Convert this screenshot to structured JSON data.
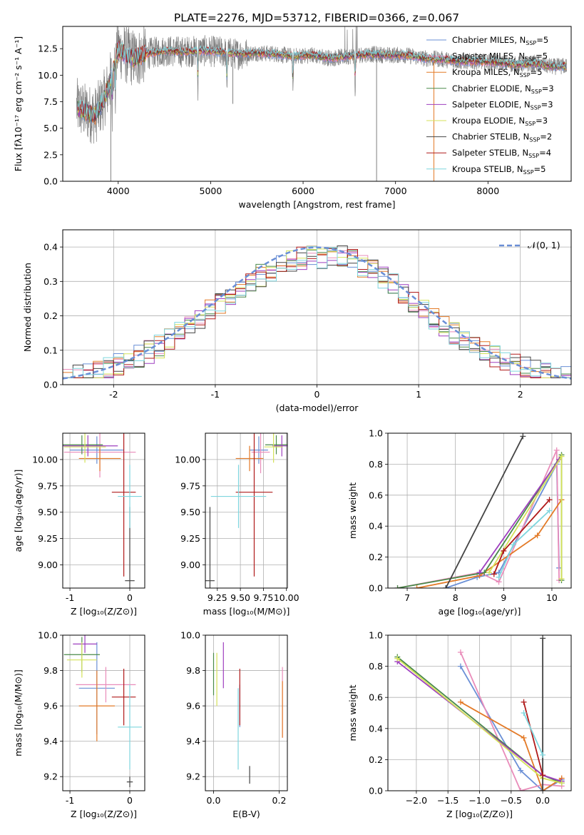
{
  "figure_title": "PLATE=2276, MJD=53712, FIBERID=0366, z=0.067",
  "colors": {
    "c0": "#6a8fd6",
    "c1": "#e98cba",
    "c2": "#e37a27",
    "c3": "#4a8a4a",
    "c4": "#9e3fbf",
    "c5": "#d4e25a",
    "c6": "#444444",
    "c7": "#b01a1a",
    "c8": "#7fd6de",
    "data": "#808080"
  },
  "chart_data": [
    {
      "id": "spectrum",
      "type": "line",
      "title": "PLATE=2276, MJD=53712, FIBERID=0366, z=0.067",
      "xlabel": "wavelength [Angstrom, rest frame]",
      "ylabel": "Flux [fλ10⁻¹⁷ erg cm⁻² s⁻¹ A⁻¹]",
      "xlim": [
        3400,
        8900
      ],
      "ylim": [
        0,
        14.6
      ],
      "xticks": [
        4000,
        5000,
        6000,
        7000,
        8000
      ],
      "yticks": [
        0.0,
        2.5,
        5.0,
        7.5,
        10.0,
        12.5
      ],
      "ytick_labels": [
        "0.0",
        "2.5",
        "5.0",
        "7.5",
        "10.0",
        "12.5"
      ],
      "legend_placement": "right",
      "continuum": [
        [
          3550,
          7.0
        ],
        [
          3650,
          6.5
        ],
        [
          3750,
          6.2
        ],
        [
          3850,
          7.8
        ],
        [
          3900,
          9.0
        ],
        [
          4000,
          12.5
        ],
        [
          4100,
          11.8
        ],
        [
          4200,
          11.6
        ],
        [
          4300,
          12.0
        ],
        [
          4500,
          12.3
        ],
        [
          4700,
          12.2
        ],
        [
          4900,
          12.3
        ],
        [
          5100,
          12.2
        ],
        [
          5300,
          12.0
        ],
        [
          5500,
          12.1
        ],
        [
          5700,
          12.0
        ],
        [
          5900,
          11.8
        ],
        [
          6100,
          11.9
        ],
        [
          6300,
          11.6
        ],
        [
          6500,
          11.8
        ],
        [
          6700,
          12.0
        ],
        [
          6900,
          11.9
        ],
        [
          7100,
          11.9
        ],
        [
          7300,
          11.6
        ],
        [
          7500,
          11.5
        ],
        [
          7700,
          11.3
        ],
        [
          7900,
          11.3
        ],
        [
          8100,
          11.2
        ],
        [
          8300,
          11.0
        ],
        [
          8500,
          11.1
        ],
        [
          8700,
          10.8
        ],
        [
          8900,
          10.9
        ]
      ],
      "series": [
        {
          "name": "Chabrier MILES, N_SSP=5",
          "label": "Chabrier MILES, N",
          "sub": "SSP",
          "count": "=5",
          "color": "#6a8fd6"
        },
        {
          "name": "Salpeter MILES, N_SSP=5",
          "label": "Salpeter MILES, N",
          "sub": "SSP",
          "count": "=5",
          "color": "#e98cba"
        },
        {
          "name": "Kroupa MILES, N_SSP=5",
          "label": "Kroupa MILES, N",
          "sub": "SSP",
          "count": "=5",
          "color": "#e37a27"
        },
        {
          "name": "Chabrier ELODIE, N_SSP=3",
          "label": "Chabrier ELODIE, N",
          "sub": "SSP",
          "count": "=3",
          "color": "#4a8a4a"
        },
        {
          "name": "Salpeter ELODIE, N_SSP=3",
          "label": "Salpeter ELODIE, N",
          "sub": "SSP",
          "count": "=3",
          "color": "#9e3fbf"
        },
        {
          "name": "Kroupa ELODIE, N_SSP=3",
          "label": "Kroupa ELODIE, N",
          "sub": "SSP",
          "count": "=3",
          "color": "#d4e25a"
        },
        {
          "name": "Chabrier STELIB, N_SSP=2",
          "label": "Chabrier STELIB, N",
          "sub": "SSP",
          "count": "=2",
          "color": "#444444"
        },
        {
          "name": "Salpeter STELIB, N_SSP=4",
          "label": "Salpeter STELIB, N",
          "sub": "SSP",
          "count": "=4",
          "color": "#b01a1a"
        },
        {
          "name": "Kroupa STELIB, N_SSP=5",
          "label": "Kroupa STELIB, N",
          "sub": "SSP",
          "count": "=5",
          "color": "#7fd6de"
        }
      ]
    },
    {
      "id": "residuals",
      "type": "line",
      "xlabel": "(data-model)/error",
      "ylabel": "Normed distribution",
      "xlim": [
        -2.5,
        2.5
      ],
      "ylim": [
        0,
        0.45
      ],
      "xticks": [
        -2,
        -1,
        0,
        1,
        2
      ],
      "yticks": [
        0.0,
        0.1,
        0.2,
        0.3,
        0.4
      ],
      "ytick_labels": [
        "0.0",
        "0.1",
        "0.2",
        "0.3",
        "0.4"
      ],
      "grid": true,
      "gaussian_label": "𝒩(0, 1)",
      "legend_placement": "top-right"
    },
    {
      "id": "age-vs-z",
      "type": "scatter",
      "xlabel": "Z [log₁₀(Z/Z⊙)]",
      "ylabel": "age  [log₁₀(age/yr)]",
      "xlim": [
        -1.12,
        0.25
      ],
      "ylim": [
        8.78,
        10.25
      ],
      "xticks": [
        -1,
        0
      ],
      "yticks": [
        9.0,
        9.25,
        9.5,
        9.75,
        10.0
      ],
      "ytick_labels": [
        "9.00",
        "9.25",
        "9.50",
        "9.75",
        "10.00"
      ],
      "grid": true,
      "points": [
        {
          "color": "#6a8fd6",
          "x": -0.55,
          "xerr": 0.45,
          "y": 10.09,
          "yerr": 0.13
        },
        {
          "color": "#e98cba",
          "x": -0.5,
          "xerr": 0.6,
          "y": 10.07,
          "yerr": 0.24
        },
        {
          "color": "#e37a27",
          "x": -0.5,
          "xerr": 0.35,
          "y": 10.01,
          "yerr": 0.12
        },
        {
          "color": "#4a8a4a",
          "x": -0.8,
          "xerr": 0.35,
          "y": 10.14,
          "yerr": 0.09
        },
        {
          "color": "#9e3fbf",
          "x": -0.7,
          "xerr": 0.5,
          "y": 10.13,
          "yerr": 0.1
        },
        {
          "color": "#d4e25a",
          "x": -0.75,
          "xerr": 0.35,
          "y": 10.12,
          "yerr": 0.15
        },
        {
          "color": "#444444",
          "x": 0.0,
          "xerr": 0.08,
          "y": 8.85,
          "yerr": 0.7
        },
        {
          "color": "#b01a1a",
          "x": -0.1,
          "xerr": 0.2,
          "y": 9.69,
          "yerr": 0.8
        },
        {
          "color": "#7fd6de",
          "x": 0.0,
          "xerr": 0.2,
          "y": 9.65,
          "yerr": 0.3
        }
      ]
    },
    {
      "id": "age-vs-mass",
      "type": "scatter",
      "xlabel": "mass [log₁₀(M/M⊙)]",
      "ylabel": "",
      "xlim": [
        9.12,
        10.01
      ],
      "ylim": [
        8.78,
        10.25
      ],
      "xticks": [
        9.25,
        9.5,
        9.75,
        10.0
      ],
      "xtick_labels": [
        "9.25",
        "9.50",
        "9.75",
        "10.00"
      ],
      "yticks": [
        9.0,
        9.25,
        9.5,
        9.75,
        10.0
      ],
      "ytick_labels": [
        "9.00",
        "9.25",
        "9.50",
        "9.75",
        "10.00"
      ],
      "grid": true,
      "points": [
        {
          "color": "#6a8fd6",
          "x": 9.7,
          "xerr": 0.1,
          "y": 10.09,
          "yerr": 0.13
        },
        {
          "color": "#e98cba",
          "x": 9.72,
          "xerr": 0.1,
          "y": 10.07,
          "yerr": 0.2
        },
        {
          "color": "#e37a27",
          "x": 9.6,
          "xerr": 0.15,
          "y": 10.01,
          "yerr": 0.12
        },
        {
          "color": "#4a8a4a",
          "x": 9.89,
          "xerr": 0.12,
          "y": 10.14,
          "yerr": 0.09
        },
        {
          "color": "#9e3fbf",
          "x": 9.95,
          "xerr": 0.1,
          "y": 10.13,
          "yerr": 0.1
        },
        {
          "color": "#d4e25a",
          "x": 9.86,
          "xerr": 0.1,
          "y": 10.12,
          "yerr": 0.15
        },
        {
          "color": "#444444",
          "x": 9.17,
          "xerr": 0.05,
          "y": 8.85,
          "yerr": 0.7
        },
        {
          "color": "#b01a1a",
          "x": 9.65,
          "xerr": 0.2,
          "y": 9.69,
          "yerr": 0.8
        },
        {
          "color": "#7fd6de",
          "x": 9.48,
          "xerr": 0.3,
          "y": 9.65,
          "yerr": 0.3
        }
      ]
    },
    {
      "id": "mass-weight-vs-age",
      "type": "line",
      "xlabel": "age  [log₁₀(age/yr)]",
      "ylabel": "mass weight",
      "xlim": [
        6.6,
        10.4
      ],
      "ylim": [
        0,
        1
      ],
      "xticks": [
        7,
        8,
        9,
        10
      ],
      "yticks": [
        0.0,
        0.2,
        0.4,
        0.6,
        0.8,
        1.0
      ],
      "ytick_labels": [
        "0.0",
        "0.2",
        "0.4",
        "0.6",
        "0.8",
        "1.0"
      ],
      "grid": true,
      "series": [
        {
          "color": "#6a8fd6",
          "points": [
            [
              7.8,
              0.0
            ],
            [
              8.45,
              0.07
            ],
            [
              8.9,
              0.1
            ],
            [
              10.1,
              0.8
            ],
            [
              10.15,
              0.13
            ]
          ]
        },
        {
          "color": "#e98cba",
          "points": [
            [
              6.8,
              0.0
            ],
            [
              8.5,
              0.1
            ],
            [
              8.9,
              0.04
            ],
            [
              10.1,
              0.89
            ],
            [
              10.15,
              0.05
            ]
          ]
        },
        {
          "color": "#e37a27",
          "points": [
            [
              7.2,
              0.0
            ],
            [
              8.5,
              0.08
            ],
            [
              9.7,
              0.34
            ],
            [
              10.2,
              0.57
            ]
          ]
        },
        {
          "color": "#4a8a4a",
          "points": [
            [
              6.8,
              0.0
            ],
            [
              8.6,
              0.1
            ],
            [
              10.2,
              0.86
            ],
            [
              10.2,
              0.05
            ]
          ]
        },
        {
          "color": "#9e3fbf",
          "points": [
            [
              8.5,
              0.1
            ],
            [
              10.15,
              0.83
            ]
          ]
        },
        {
          "color": "#d4e25a",
          "points": [
            [
              8.7,
              0.1
            ],
            [
              10.2,
              0.85
            ],
            [
              10.2,
              0.06
            ]
          ]
        },
        {
          "color": "#444444",
          "points": [
            [
              7.8,
              0.0
            ],
            [
              9.4,
              0.98
            ]
          ]
        },
        {
          "color": "#b01a1a",
          "points": [
            [
              8.8,
              0.09
            ],
            [
              9.0,
              0.24
            ],
            [
              9.95,
              0.57
            ]
          ]
        },
        {
          "color": "#7fd6de",
          "points": [
            [
              8.9,
              0.07
            ],
            [
              9.2,
              0.28
            ],
            [
              9.95,
              0.5
            ]
          ]
        }
      ]
    },
    {
      "id": "mass-vs-z",
      "type": "scatter",
      "xlabel": "Z [log₁₀(Z/Z⊙)]",
      "ylabel": "mass [log₁₀(M/M⊙)]",
      "xlim": [
        -1.12,
        0.25
      ],
      "ylim": [
        9.12,
        10.0
      ],
      "xticks": [
        -1,
        0
      ],
      "yticks": [
        9.2,
        9.4,
        9.6,
        9.8,
        10.0
      ],
      "ytick_labels": [
        "9.2",
        "9.4",
        "9.6",
        "9.8",
        "10.0"
      ],
      "grid": true,
      "points": [
        {
          "color": "#6a8fd6",
          "x": -0.55,
          "xerr": 0.3,
          "y": 9.7,
          "yerr": 0.26
        },
        {
          "color": "#e98cba",
          "x": -0.4,
          "xerr": 0.5,
          "y": 9.72,
          "yerr": 0.1
        },
        {
          "color": "#e37a27",
          "x": -0.55,
          "xerr": 0.3,
          "y": 9.6,
          "yerr": 0.2
        },
        {
          "color": "#4a8a4a",
          "x": -0.8,
          "xerr": 0.3,
          "y": 9.89,
          "yerr": 0.1
        },
        {
          "color": "#9e3fbf",
          "x": -0.75,
          "xerr": 0.2,
          "y": 9.95,
          "yerr": 0.05
        },
        {
          "color": "#d4e25a",
          "x": -0.8,
          "xerr": 0.25,
          "y": 9.86,
          "yerr": 0.1
        },
        {
          "color": "#444444",
          "x": 0.0,
          "xerr": 0.05,
          "y": 9.17,
          "yerr": 0.03
        },
        {
          "color": "#b01a1a",
          "x": -0.1,
          "xerr": 0.2,
          "y": 9.65,
          "yerr": 0.16
        },
        {
          "color": "#7fd6de",
          "x": 0.0,
          "xerr": 0.2,
          "y": 9.48,
          "yerr": 0.24
        }
      ]
    },
    {
      "id": "mass-vs-ebv",
      "type": "scatter",
      "xlabel": "E(B-V)",
      "ylabel": "",
      "xlim": [
        -0.025,
        0.225
      ],
      "ylim": [
        9.12,
        10.0
      ],
      "xticks": [
        0.0,
        0.2
      ],
      "xtick_labels": [
        "0.0",
        "0.2"
      ],
      "yticks": [
        9.2,
        9.4,
        9.6,
        9.8,
        10.0
      ],
      "ytick_labels": [
        "9.2",
        "9.4",
        "9.6",
        "9.8",
        "10.0"
      ],
      "grid": true,
      "points": [
        {
          "color": "#6a8fd6",
          "x": 0.08,
          "y": 9.6,
          "yerr": 0.12
        },
        {
          "color": "#e98cba",
          "x": 0.21,
          "y": 9.62,
          "yerr": 0.2
        },
        {
          "color": "#e37a27",
          "x": 0.21,
          "y": 9.58,
          "yerr": 0.16
        },
        {
          "color": "#4a8a4a",
          "x": 0.0,
          "y": 9.78,
          "yerr": 0.12
        },
        {
          "color": "#9e3fbf",
          "x": 0.03,
          "y": 9.83,
          "yerr": 0.13
        },
        {
          "color": "#d4e25a",
          "x": 0.01,
          "y": 9.75,
          "yerr": 0.15
        },
        {
          "color": "#444444",
          "x": 0.11,
          "y": 9.21,
          "yerr": 0.05
        },
        {
          "color": "#b01a1a",
          "x": 0.08,
          "y": 9.65,
          "yerr": 0.16
        },
        {
          "color": "#7fd6de",
          "x": 0.075,
          "y": 9.47,
          "yerr": 0.23
        }
      ]
    },
    {
      "id": "mass-weight-vs-z",
      "type": "line",
      "xlabel": "Z [log₁₀(Z/Z⊙)]",
      "ylabel": "mass weight",
      "xlim": [
        -2.45,
        0.45
      ],
      "ylim": [
        0,
        1
      ],
      "xticks": [
        -2.0,
        -1.5,
        -1.0,
        -0.5,
        0.0
      ],
      "xtick_labels": [
        "−2.0",
        "−1.5",
        "−1.0",
        "−0.5",
        "0.0"
      ],
      "yticks": [
        0.0,
        0.2,
        0.4,
        0.6,
        0.8,
        1.0
      ],
      "ytick_labels": [
        "0.0",
        "0.2",
        "0.4",
        "0.6",
        "0.8",
        "1.0"
      ],
      "grid": true,
      "series": [
        {
          "color": "#6a8fd6",
          "points": [
            [
              -1.3,
              0.8
            ],
            [
              -0.35,
              0.13
            ],
            [
              0.0,
              0.0
            ],
            [
              0.3,
              0.07
            ]
          ]
        },
        {
          "color": "#e98cba",
          "points": [
            [
              -1.3,
              0.89
            ],
            [
              -0.35,
              0.0
            ],
            [
              0.0,
              0.04
            ],
            [
              0.3,
              0.03
            ]
          ]
        },
        {
          "color": "#e37a27",
          "points": [
            [
              -1.3,
              0.57
            ],
            [
              -0.3,
              0.34
            ],
            [
              0.0,
              0.0
            ],
            [
              0.3,
              0.08
            ]
          ]
        },
        {
          "color": "#4a8a4a",
          "points": [
            [
              -2.3,
              0.86
            ],
            [
              0.0,
              0.1
            ],
            [
              0.3,
              0.05
            ]
          ]
        },
        {
          "color": "#9e3fbf",
          "points": [
            [
              -2.3,
              0.83
            ],
            [
              0.0,
              0.1
            ],
            [
              0.3,
              0.06
            ]
          ]
        },
        {
          "color": "#d4e25a",
          "points": [
            [
              -2.3,
              0.85
            ],
            [
              0.0,
              0.08
            ],
            [
              0.3,
              0.05
            ]
          ]
        },
        {
          "color": "#444444",
          "points": [
            [
              0.0,
              0.98
            ],
            [
              0.0,
              0.0
            ]
          ]
        },
        {
          "color": "#b01a1a",
          "points": [
            [
              -0.3,
              0.57
            ],
            [
              0.0,
              0.1
            ]
          ]
        },
        {
          "color": "#7fd6de",
          "points": [
            [
              -0.3,
              0.5
            ],
            [
              0.0,
              0.23
            ]
          ]
        }
      ]
    }
  ]
}
